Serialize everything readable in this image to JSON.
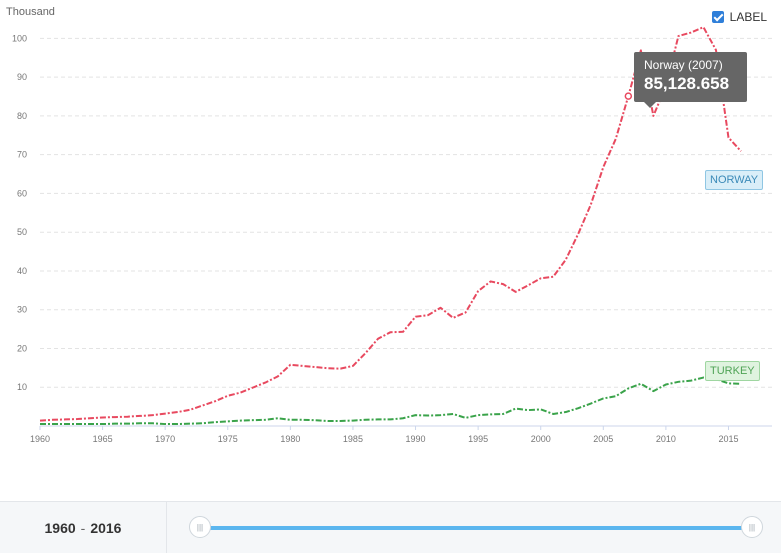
{
  "chart": {
    "unit_label": "Thousand",
    "label_toggle": "LABEL",
    "tooltip": {
      "title": "Norway (2007)",
      "value": "85,128.658"
    }
  },
  "footer": {
    "range_start": "1960",
    "range_sep": "-",
    "range_end": "2016"
  },
  "colors": {
    "norway": "#e8495f",
    "turkey": "#3aa34a",
    "grid": "#e3e3e3",
    "slider": "#5bb6ef"
  },
  "chart_data": {
    "type": "line",
    "title": "",
    "xlabel": "",
    "ylabel": "Thousand",
    "xlim": [
      1960,
      2016
    ],
    "ylim": [
      0,
      105
    ],
    "yticks": [
      10,
      20,
      30,
      40,
      50,
      60,
      70,
      80,
      90,
      100
    ],
    "xticks": [
      1960,
      1965,
      1970,
      1975,
      1980,
      1985,
      1990,
      1995,
      2000,
      2005,
      2010,
      2015
    ],
    "grid": true,
    "x": [
      1960,
      1961,
      1962,
      1963,
      1964,
      1965,
      1966,
      1967,
      1968,
      1969,
      1970,
      1971,
      1972,
      1973,
      1974,
      1975,
      1976,
      1977,
      1978,
      1979,
      1980,
      1981,
      1982,
      1983,
      1984,
      1985,
      1986,
      1987,
      1988,
      1989,
      1990,
      1991,
      1992,
      1993,
      1994,
      1995,
      1996,
      1997,
      1998,
      1999,
      2000,
      2001,
      2002,
      2003,
      2004,
      2005,
      2006,
      2007,
      2008,
      2009,
      2010,
      2011,
      2012,
      2013,
      2014,
      2015,
      2016
    ],
    "series": [
      {
        "name": "NORWAY",
        "values": [
          1.4,
          1.6,
          1.7,
          1.8,
          2.0,
          2.2,
          2.3,
          2.4,
          2.6,
          2.8,
          3.2,
          3.6,
          4.2,
          5.3,
          6.4,
          7.8,
          8.6,
          9.9,
          11.2,
          12.8,
          15.8,
          15.5,
          15.2,
          14.9,
          14.8,
          15.5,
          18.8,
          22.5,
          24.2,
          24.3,
          28.2,
          28.6,
          30.5,
          27.9,
          29.3,
          34.8,
          37.3,
          36.6,
          34.6,
          36.3,
          38.1,
          38.5,
          42.9,
          49.6,
          57.1,
          66.8,
          74.1,
          85.1,
          96.9,
          80.0,
          87.7,
          100.6,
          101.5,
          102.9,
          97.0,
          74.4,
          70.9
        ]
      },
      {
        "name": "TURKEY",
        "values": [
          0.5,
          0.5,
          0.5,
          0.5,
          0.5,
          0.5,
          0.6,
          0.6,
          0.7,
          0.7,
          0.5,
          0.5,
          0.6,
          0.7,
          1.0,
          1.2,
          1.4,
          1.5,
          1.6,
          2.0,
          1.6,
          1.6,
          1.5,
          1.3,
          1.3,
          1.4,
          1.6,
          1.7,
          1.7,
          2.0,
          2.8,
          2.7,
          2.8,
          3.1,
          2.1,
          2.8,
          3.0,
          3.1,
          4.5,
          4.1,
          4.3,
          3.1,
          3.6,
          4.6,
          5.8,
          7.1,
          7.7,
          9.7,
          10.9,
          9.0,
          10.7,
          11.4,
          11.7,
          12.5,
          12.1,
          11.0,
          10.9
        ]
      }
    ],
    "highlight": {
      "series": "NORWAY",
      "x": 2007,
      "y": 85128.658
    }
  }
}
